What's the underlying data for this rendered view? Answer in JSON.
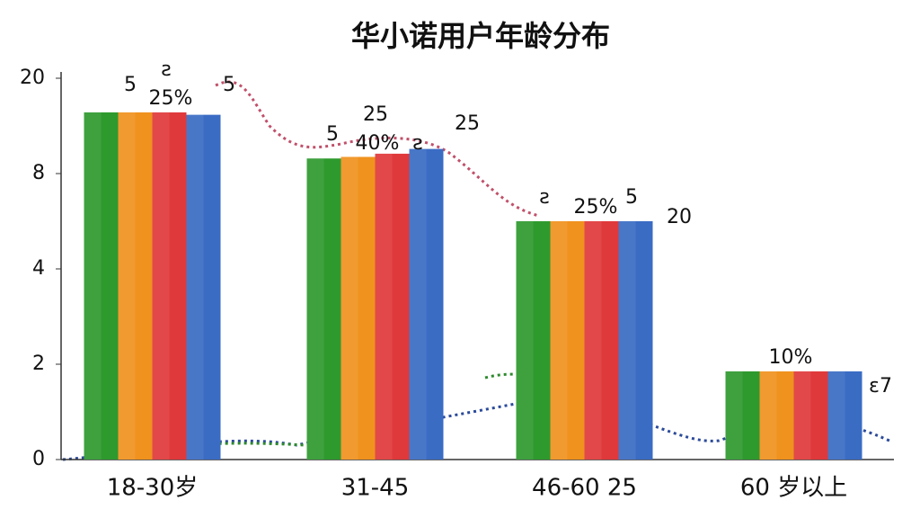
{
  "chart_data": {
    "type": "bar",
    "title": "华小诺用户年龄分布",
    "categories": [
      "18-30岁",
      "31-45",
      "46-60 25",
      "60 岁以上"
    ],
    "series": [
      {
        "color": "#2e9a2e",
        "values": [
          15.7,
          9.9,
          6.0,
          1.85
        ]
      },
      {
        "color": "#f0921e",
        "values": [
          15.7,
          10.1,
          6.0,
          1.85
        ]
      },
      {
        "color": "#e0393b",
        "values": [
          15.7,
          10.5,
          6.0,
          1.85
        ]
      },
      {
        "color": "#3a6cc4",
        "values": [
          15.4,
          11.1,
          6.0,
          1.85
        ]
      }
    ],
    "ylim": [
      0,
      20
    ],
    "yticks": [
      0,
      2,
      4,
      8,
      20
    ],
    "annotations": [
      "25%",
      "40%",
      "25%",
      "10%",
      "5",
      "ƨ",
      "5",
      "5",
      "25",
      "ƨ",
      "25",
      "ƨ",
      "5",
      "20",
      "ɛ7"
    ]
  }
}
